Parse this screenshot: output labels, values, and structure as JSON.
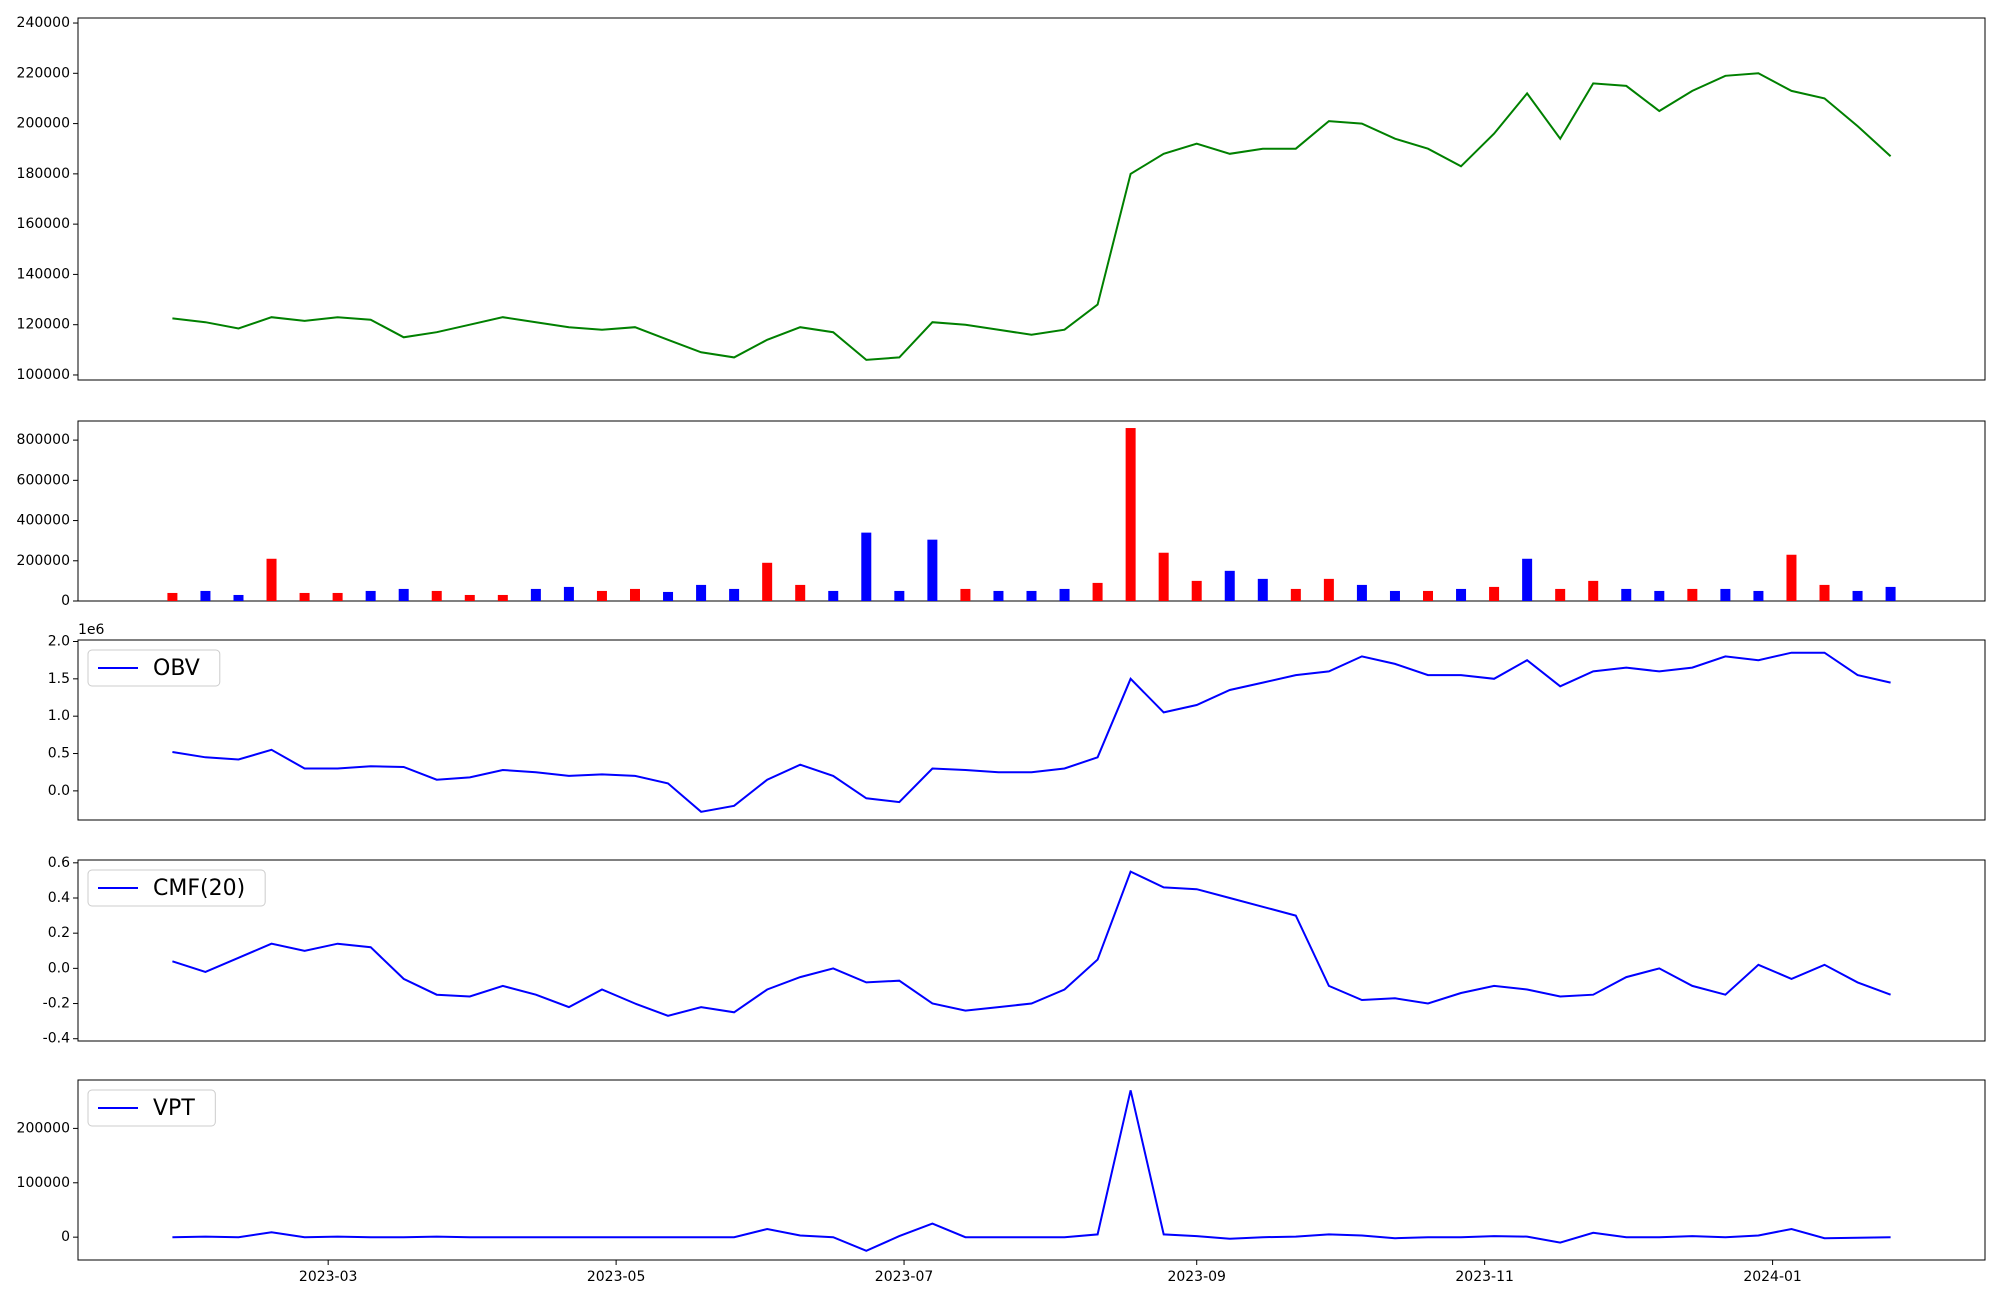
{
  "chart_data": [
    {
      "type": "line",
      "color": "#008000",
      "x": [
        "2023-01-27",
        "2023-02-03",
        "2023-02-10",
        "2023-02-17",
        "2023-02-24",
        "2023-03-03",
        "2023-03-10",
        "2023-03-17",
        "2023-03-24",
        "2023-03-31",
        "2023-04-07",
        "2023-04-14",
        "2023-04-21",
        "2023-04-28",
        "2023-05-05",
        "2023-05-12",
        "2023-05-19",
        "2023-05-26",
        "2023-06-02",
        "2023-06-09",
        "2023-06-16",
        "2023-06-23",
        "2023-06-30",
        "2023-07-07",
        "2023-07-14",
        "2023-07-21",
        "2023-07-28",
        "2023-08-04",
        "2023-08-11",
        "2023-08-18",
        "2023-08-25",
        "2023-09-01",
        "2023-09-08",
        "2023-09-15",
        "2023-09-22",
        "2023-09-29",
        "2023-10-06",
        "2023-10-13",
        "2023-10-20",
        "2023-10-27",
        "2023-11-03",
        "2023-11-10",
        "2023-11-17",
        "2023-11-24",
        "2023-12-01",
        "2023-12-08",
        "2023-12-15",
        "2023-12-22",
        "2023-12-29",
        "2024-01-05",
        "2024-01-12",
        "2024-01-19",
        "2024-01-26"
      ],
      "values": [
        122500,
        121000,
        118500,
        123000,
        121500,
        123000,
        122000,
        115000,
        117000,
        120000,
        123000,
        121000,
        119000,
        118000,
        119000,
        114000,
        109000,
        107000,
        114000,
        119000,
        117000,
        106000,
        107000,
        121000,
        120000,
        118000,
        116000,
        118000,
        128000,
        180000,
        188000,
        192000,
        188000,
        190000,
        190000,
        201000,
        200000,
        194000,
        190000,
        183000,
        196000,
        212000,
        194000,
        216000,
        215000,
        205000,
        213000,
        219000,
        220000,
        213000,
        210000,
        199000,
        187000
      ],
      "xlim": [
        "2023-01-07",
        "2024-02-15"
      ],
      "ylim": [
        98000,
        242000
      ],
      "yticks": [
        100000,
        120000,
        140000,
        160000,
        180000,
        200000,
        220000,
        240000
      ]
    },
    {
      "type": "bar",
      "x": [
        "2023-01-27",
        "2023-02-03",
        "2023-02-10",
        "2023-02-17",
        "2023-02-24",
        "2023-03-03",
        "2023-03-10",
        "2023-03-17",
        "2023-03-24",
        "2023-03-31",
        "2023-04-07",
        "2023-04-14",
        "2023-04-21",
        "2023-04-28",
        "2023-05-05",
        "2023-05-12",
        "2023-05-19",
        "2023-05-26",
        "2023-06-02",
        "2023-06-09",
        "2023-06-16",
        "2023-06-23",
        "2023-06-30",
        "2023-07-07",
        "2023-07-14",
        "2023-07-21",
        "2023-07-28",
        "2023-08-04",
        "2023-08-11",
        "2023-08-18",
        "2023-08-25",
        "2023-09-01",
        "2023-09-08",
        "2023-09-15",
        "2023-09-22",
        "2023-09-29",
        "2023-10-06",
        "2023-10-13",
        "2023-10-20",
        "2023-10-27",
        "2023-11-03",
        "2023-11-10",
        "2023-11-17",
        "2023-11-24",
        "2023-12-01",
        "2023-12-08",
        "2023-12-15",
        "2023-12-22",
        "2023-12-29",
        "2024-01-05",
        "2024-01-12",
        "2024-01-19",
        "2024-01-26"
      ],
      "values": [
        40000,
        50000,
        30000,
        210000,
        40000,
        40000,
        50000,
        60000,
        50000,
        30000,
        30000,
        60000,
        70000,
        50000,
        60000,
        45000,
        80000,
        60000,
        190000,
        80000,
        50000,
        340000,
        50000,
        305000,
        60000,
        50000,
        50000,
        60000,
        90000,
        860000,
        240000,
        100000,
        150000,
        110000,
        60000,
        110000,
        80000,
        50000,
        50000,
        60000,
        70000,
        210000,
        60000,
        100000,
        60000,
        50000,
        60000,
        60000,
        50000,
        230000,
        80000,
        50000,
        70000
      ],
      "colors": [
        "red",
        "blue",
        "blue",
        "red",
        "red",
        "red",
        "blue",
        "blue",
        "red",
        "red",
        "red",
        "blue",
        "blue",
        "red",
        "red",
        "blue",
        "blue",
        "blue",
        "red",
        "red",
        "blue",
        "blue",
        "blue",
        "blue",
        "red",
        "blue",
        "blue",
        "blue",
        "red",
        "red",
        "red",
        "red",
        "blue",
        "blue",
        "red",
        "red",
        "blue",
        "blue",
        "red",
        "blue",
        "red",
        "blue",
        "red",
        "red",
        "blue",
        "blue",
        "red",
        "blue",
        "blue",
        "red",
        "red",
        "blue",
        "blue"
      ],
      "xlim": [
        "2023-01-07",
        "2024-02-15"
      ],
      "ylim": [
        0,
        895000
      ],
      "yticks": [
        0,
        200000,
        400000,
        600000,
        800000
      ]
    },
    {
      "type": "line",
      "y_offset_label": "1e6",
      "x": [
        "2023-01-27",
        "2023-02-03",
        "2023-02-10",
        "2023-02-17",
        "2023-02-24",
        "2023-03-03",
        "2023-03-10",
        "2023-03-17",
        "2023-03-24",
        "2023-03-31",
        "2023-04-07",
        "2023-04-14",
        "2023-04-21",
        "2023-04-28",
        "2023-05-05",
        "2023-05-12",
        "2023-05-19",
        "2023-05-26",
        "2023-06-02",
        "2023-06-09",
        "2023-06-16",
        "2023-06-23",
        "2023-06-30",
        "2023-07-07",
        "2023-07-14",
        "2023-07-21",
        "2023-07-28",
        "2023-08-04",
        "2023-08-11",
        "2023-08-18",
        "2023-08-25",
        "2023-09-01",
        "2023-09-08",
        "2023-09-15",
        "2023-09-22",
        "2023-09-29",
        "2023-10-06",
        "2023-10-13",
        "2023-10-20",
        "2023-10-27",
        "2023-11-03",
        "2023-11-10",
        "2023-11-17",
        "2023-11-24",
        "2023-12-01",
        "2023-12-08",
        "2023-12-15",
        "2023-12-22",
        "2023-12-29",
        "2024-01-05",
        "2024-01-12",
        "2024-01-19",
        "2024-01-26"
      ],
      "series": [
        {
          "name": "OBV",
          "color": "#0000ff",
          "values": [
            0.52,
            0.45,
            0.42,
            0.55,
            0.3,
            0.3,
            0.33,
            0.32,
            0.15,
            0.18,
            0.28,
            0.25,
            0.2,
            0.22,
            0.2,
            0.1,
            -0.28,
            -0.2,
            0.15,
            0.35,
            0.2,
            -0.1,
            -0.15,
            0.3,
            0.28,
            0.25,
            0.25,
            0.3,
            0.45,
            1.5,
            1.05,
            1.15,
            1.35,
            1.45,
            1.55,
            1.6,
            1.8,
            1.7,
            1.55,
            1.55,
            1.5,
            1.75,
            1.4,
            1.6,
            1.65,
            1.6,
            1.65,
            1.8,
            1.75,
            1.85,
            1.85,
            1.55,
            1.45
          ]
        }
      ],
      "xlim": [
        "2023-01-07",
        "2024-02-15"
      ],
      "ylim": [
        -0.39,
        2.02
      ],
      "yticks": [
        {
          "value": 0,
          "label": "0.0"
        },
        0.5,
        {
          "value": 1,
          "label": "1.0"
        },
        1.5,
        {
          "value": 2,
          "label": "2.0"
        }
      ],
      "legend": "upper left"
    },
    {
      "type": "line",
      "x": [
        "2023-01-27",
        "2023-02-03",
        "2023-02-10",
        "2023-02-17",
        "2023-02-24",
        "2023-03-03",
        "2023-03-10",
        "2023-03-17",
        "2023-03-24",
        "2023-03-31",
        "2023-04-07",
        "2023-04-14",
        "2023-04-21",
        "2023-04-28",
        "2023-05-05",
        "2023-05-12",
        "2023-05-19",
        "2023-05-26",
        "2023-06-02",
        "2023-06-09",
        "2023-06-16",
        "2023-06-23",
        "2023-06-30",
        "2023-07-07",
        "2023-07-14",
        "2023-07-21",
        "2023-07-28",
        "2023-08-04",
        "2023-08-11",
        "2023-08-18",
        "2023-08-25",
        "2023-09-01",
        "2023-09-08",
        "2023-09-15",
        "2023-09-22",
        "2023-09-29",
        "2023-10-06",
        "2023-10-13",
        "2023-10-20",
        "2023-10-27",
        "2023-11-03",
        "2023-11-10",
        "2023-11-17",
        "2023-11-24",
        "2023-12-01",
        "2023-12-08",
        "2023-12-15",
        "2023-12-22",
        "2023-12-29",
        "2024-01-05",
        "2024-01-12",
        "2024-01-19",
        "2024-01-26"
      ],
      "series": [
        {
          "name": "CMF(20)",
          "color": "#0000ff",
          "values": [
            0.04,
            -0.02,
            0.06,
            0.14,
            0.1,
            0.14,
            0.12,
            -0.06,
            -0.15,
            -0.16,
            -0.1,
            -0.15,
            -0.22,
            -0.12,
            -0.2,
            -0.27,
            -0.22,
            -0.25,
            -0.12,
            -0.05,
            0,
            -0.08,
            -0.07,
            -0.2,
            -0.24,
            -0.22,
            -0.2,
            -0.12,
            0.05,
            0.55,
            0.46,
            0.45,
            0.4,
            0.35,
            0.3,
            -0.1,
            -0.18,
            -0.17,
            -0.2,
            -0.14,
            -0.1,
            -0.12,
            -0.16,
            -0.15,
            -0.05,
            0,
            -0.1,
            -0.15,
            0.02,
            -0.06,
            0.02,
            -0.08,
            -0.15
          ]
        }
      ],
      "xlim": [
        "2023-01-07",
        "2024-02-15"
      ],
      "ylim": [
        -0.413,
        0.616
      ],
      "yticks": [
        -0.4,
        -0.2,
        {
          "value": 0,
          "label": "0.0"
        },
        0.2,
        0.4,
        0.6
      ],
      "legend": "upper left"
    },
    {
      "type": "line",
      "x": [
        "2023-01-27",
        "2023-02-03",
        "2023-02-10",
        "2023-02-17",
        "2023-02-24",
        "2023-03-03",
        "2023-03-10",
        "2023-03-17",
        "2023-03-24",
        "2023-03-31",
        "2023-04-07",
        "2023-04-14",
        "2023-04-21",
        "2023-04-28",
        "2023-05-05",
        "2023-05-12",
        "2023-05-19",
        "2023-05-26",
        "2023-06-02",
        "2023-06-09",
        "2023-06-16",
        "2023-06-23",
        "2023-06-30",
        "2023-07-07",
        "2023-07-14",
        "2023-07-21",
        "2023-07-28",
        "2023-08-04",
        "2023-08-11",
        "2023-08-18",
        "2023-08-25",
        "2023-09-01",
        "2023-09-08",
        "2023-09-15",
        "2023-09-22",
        "2023-09-29",
        "2023-10-06",
        "2023-10-13",
        "2023-10-20",
        "2023-10-27",
        "2023-11-03",
        "2023-11-10",
        "2023-11-17",
        "2023-11-24",
        "2023-12-01",
        "2023-12-08",
        "2023-12-15",
        "2023-12-22",
        "2023-12-29",
        "2024-01-05",
        "2024-01-12",
        "2024-01-19",
        "2024-01-26"
      ],
      "series": [
        {
          "name": "VPT",
          "color": "#0000ff",
          "values": [
            0,
            1000,
            0,
            9000,
            0,
            1000,
            0,
            0,
            1000,
            0,
            0,
            0,
            0,
            0,
            0,
            0,
            0,
            0,
            15000,
            3000,
            0,
            -25000,
            2000,
            25000,
            0,
            0,
            0,
            0,
            5000,
            270000,
            5000,
            2000,
            -3000,
            0,
            1000,
            5000,
            3000,
            -2000,
            0,
            0,
            2000,
            1000,
            -10000,
            8000,
            0,
            0,
            2000,
            0,
            3000,
            15000,
            -2000,
            -1000,
            0
          ]
        }
      ],
      "xlim": [
        "2023-01-07",
        "2024-02-15"
      ],
      "ylim": [
        -42000,
        289000
      ],
      "yticks": [
        0,
        100000,
        200000
      ],
      "xticks": [
        "2023-03",
        "2023-05",
        "2023-07",
        "2023-09",
        "2023-11",
        "2024-01"
      ],
      "legend": "upper left"
    }
  ]
}
